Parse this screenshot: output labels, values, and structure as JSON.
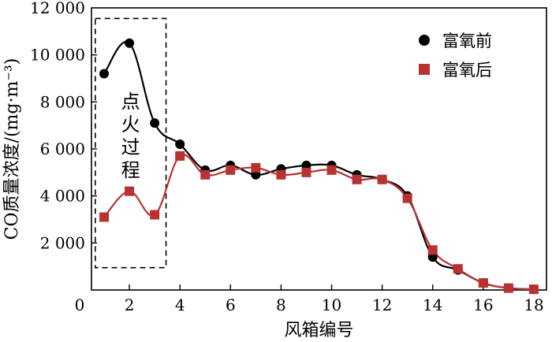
{
  "chart_data": {
    "type": "line",
    "title": "",
    "xlabel": "风箱编号",
    "ylabel": "CO质量浓度/(mg·m⁻³)",
    "xlim": [
      0.5,
      18.5
    ],
    "ylim": [
      0,
      12000
    ],
    "x_ticks": [
      2,
      4,
      6,
      8,
      10,
      12,
      14,
      16,
      18
    ],
    "x_tick_labels": [
      "2",
      "4",
      "6",
      "8",
      "10",
      "12",
      "14",
      "16",
      "18"
    ],
    "y_ticks": [
      0,
      2000,
      4000,
      6000,
      8000,
      10000,
      12000
    ],
    "y_tick_labels": [
      "0",
      "2 000",
      "4 000",
      "6 000",
      "8 000",
      "10 000",
      "12 000"
    ],
    "x_origin_label": "0",
    "grid": false,
    "legend_position": "top-right",
    "x": [
      1,
      2,
      3,
      4,
      5,
      6,
      7,
      8,
      9,
      10,
      11,
      12,
      13,
      14,
      15,
      16,
      17,
      18
    ],
    "series": [
      {
        "name": "富氧前",
        "marker": "circle",
        "color": "#000000",
        "values": [
          9200,
          10500,
          7100,
          6200,
          5100,
          5300,
          4900,
          5150,
          5300,
          5300,
          4900,
          4700,
          4000,
          1400,
          850,
          300,
          80,
          30
        ]
      },
      {
        "name": "富氧后",
        "marker": "square",
        "color": "#b83232",
        "values": [
          3100,
          4200,
          3200,
          5700,
          4900,
          5100,
          5200,
          4900,
          5000,
          5100,
          4700,
          4700,
          3900,
          1700,
          900,
          300,
          80,
          30
        ]
      }
    ],
    "annotations": [
      {
        "text": "点火过程",
        "style": "dashed-box",
        "x_range": [
          0.65,
          3.45
        ],
        "y_range": [
          950,
          11550
        ]
      }
    ]
  }
}
